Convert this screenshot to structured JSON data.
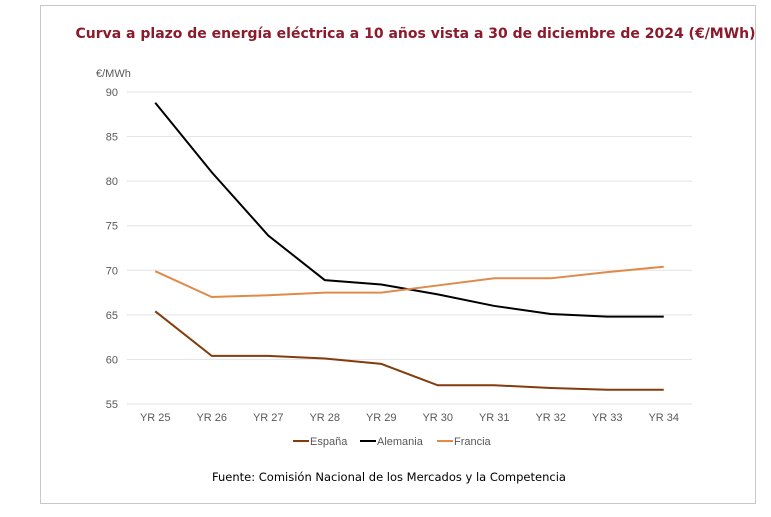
{
  "chart_data": {
    "type": "line",
    "title": "Curva a plazo de energía eléctrica a 10 años vista a 30 de diciembre de 2024 (€/MWh)",
    "ylabel": "€/MWh",
    "xlabel": "",
    "categories": [
      "YR 25",
      "YR 26",
      "YR 27",
      "YR 28",
      "YR 29",
      "YR 30",
      "YR 31",
      "YR 32",
      "YR 33",
      "YR 34"
    ],
    "ylim": [
      55,
      90
    ],
    "yticks": [
      55,
      60,
      65,
      70,
      75,
      80,
      85,
      90
    ],
    "grid": true,
    "legend_position": "bottom",
    "series": [
      {
        "name": "España",
        "color": "#843c0c",
        "values": [
          65.4,
          60.4,
          60.4,
          60.1,
          59.5,
          57.1,
          57.1,
          56.8,
          56.6,
          56.6
        ]
      },
      {
        "name": "Alemania",
        "color": "#000000",
        "values": [
          88.8,
          81.0,
          73.9,
          68.9,
          68.4,
          67.3,
          66.0,
          65.1,
          64.8,
          64.8
        ]
      },
      {
        "name": "Francia",
        "color": "#e08a4a",
        "values": [
          69.9,
          67.0,
          67.2,
          67.5,
          67.5,
          68.3,
          69.1,
          69.1,
          69.8,
          70.4
        ]
      }
    ],
    "source": "Fuente: Comisión Nacional de los Mercados y la Competencia"
  }
}
